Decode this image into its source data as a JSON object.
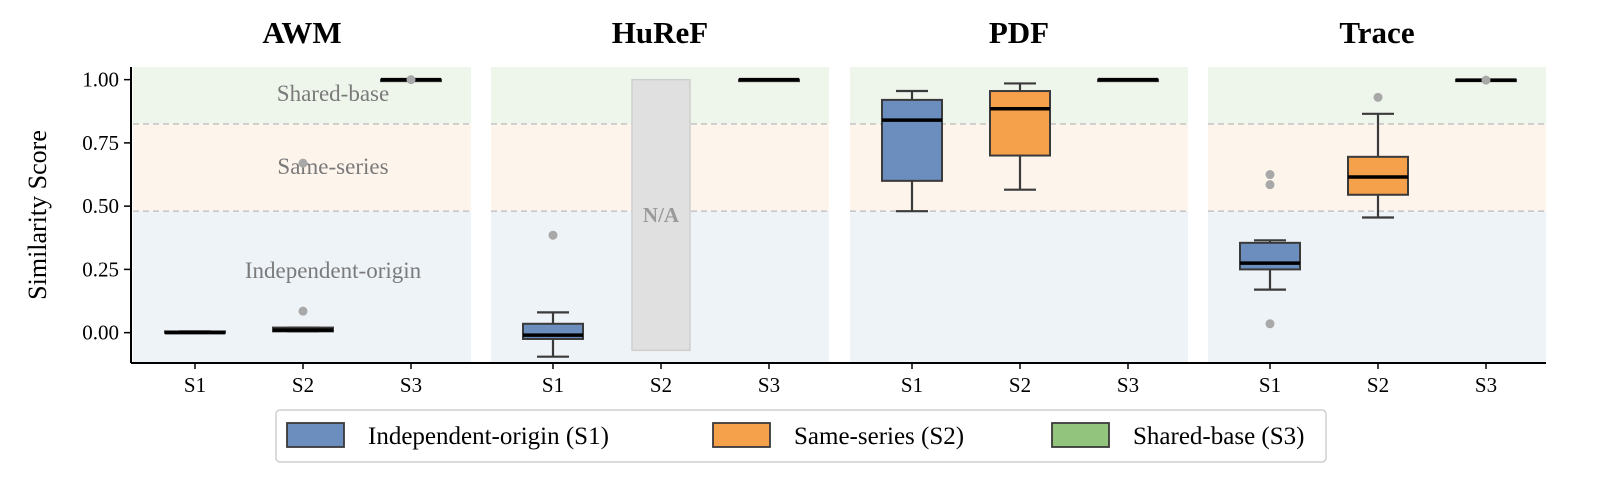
{
  "chart_data": {
    "type": "box",
    "ylabel": "Similarity Score",
    "ylim": [
      -0.12,
      1.05
    ],
    "yticks": [
      "0.00",
      "0.25",
      "0.50",
      "0.75",
      "1.00"
    ],
    "ytick_values": [
      0,
      0.25,
      0.5,
      0.75,
      1.0
    ],
    "categories": [
      "S1",
      "S2",
      "S3"
    ],
    "thresholds": [
      0.48,
      0.825
    ],
    "regions": [
      {
        "label": "Shared-base",
        "from": 0.825,
        "to": 1.05,
        "color": "#eef6ec"
      },
      {
        "label": "Same-series",
        "from": 0.48,
        "to": 0.825,
        "color": "#fdf4ec"
      },
      {
        "label": "Independent-origin",
        "from": -0.12,
        "to": 0.48,
        "color": "#eef3f8"
      }
    ],
    "series_colors": {
      "S1": "#6c8ebf",
      "S2": "#f5a04a",
      "S3": "#93c47d"
    },
    "panels": [
      {
        "title": "AWM",
        "boxes": [
          {
            "cat": "S1",
            "q1": 0.0,
            "median": 0.0,
            "q3": 0.005,
            "whislo": 0.0,
            "whishi": 0.005,
            "fliers": []
          },
          {
            "cat": "S2",
            "q1": 0.005,
            "median": 0.01,
            "q3": 0.02,
            "whislo": 0.005,
            "whishi": 0.02,
            "fliers": [
              0.085
            ]
          },
          {
            "cat": "S3",
            "q1": 0.998,
            "median": 1.0,
            "q3": 1.0,
            "whislo": 0.998,
            "whishi": 1.0,
            "fliers": [
              1.0
            ]
          }
        ],
        "extra_fliers": [
          {
            "cat": "S2",
            "value": 0.67
          }
        ],
        "na": null
      },
      {
        "title": "HuReF",
        "boxes": [
          {
            "cat": "S1",
            "q1": -0.025,
            "median": -0.01,
            "q3": 0.035,
            "whislo": -0.095,
            "whishi": 0.08,
            "fliers": [
              0.385
            ]
          },
          {
            "cat": "S3",
            "q1": 0.998,
            "median": 1.0,
            "q3": 1.0,
            "whislo": 0.998,
            "whishi": 1.0,
            "fliers": []
          }
        ],
        "extra_fliers": [],
        "na": {
          "cat": "S2",
          "label": "N/A",
          "from": -0.07,
          "to": 1.0
        }
      },
      {
        "title": "PDF",
        "boxes": [
          {
            "cat": "S1",
            "q1": 0.6,
            "median": 0.84,
            "q3": 0.92,
            "whislo": 0.48,
            "whishi": 0.955,
            "fliers": []
          },
          {
            "cat": "S2",
            "q1": 0.7,
            "median": 0.885,
            "q3": 0.955,
            "whislo": 0.565,
            "whishi": 0.985,
            "fliers": []
          },
          {
            "cat": "S3",
            "q1": 0.998,
            "median": 1.0,
            "q3": 1.0,
            "whislo": 0.998,
            "whishi": 1.0,
            "fliers": []
          }
        ],
        "extra_fliers": [],
        "na": null
      },
      {
        "title": "Trace",
        "boxes": [
          {
            "cat": "S1",
            "q1": 0.25,
            "median": 0.275,
            "q3": 0.355,
            "whislo": 0.17,
            "whishi": 0.365,
            "fliers": [
              0.035,
              0.585,
              0.625
            ]
          },
          {
            "cat": "S2",
            "q1": 0.545,
            "median": 0.615,
            "q3": 0.695,
            "whislo": 0.455,
            "whishi": 0.865,
            "fliers": [
              0.93
            ]
          },
          {
            "cat": "S3",
            "q1": 0.997,
            "median": 0.998,
            "q3": 1.0,
            "whislo": 0.997,
            "whishi": 1.0,
            "fliers": [
              0.998
            ]
          }
        ],
        "extra_fliers": [],
        "na": null
      }
    ],
    "legend": [
      {
        "label": "Independent-origin (S1)",
        "color": "#6c8ebf"
      },
      {
        "label": "Same-series (S2)",
        "color": "#f5a04a"
      },
      {
        "label": "Shared-base (S3)",
        "color": "#93c47d"
      }
    ],
    "legend_position": "bottom-center"
  }
}
